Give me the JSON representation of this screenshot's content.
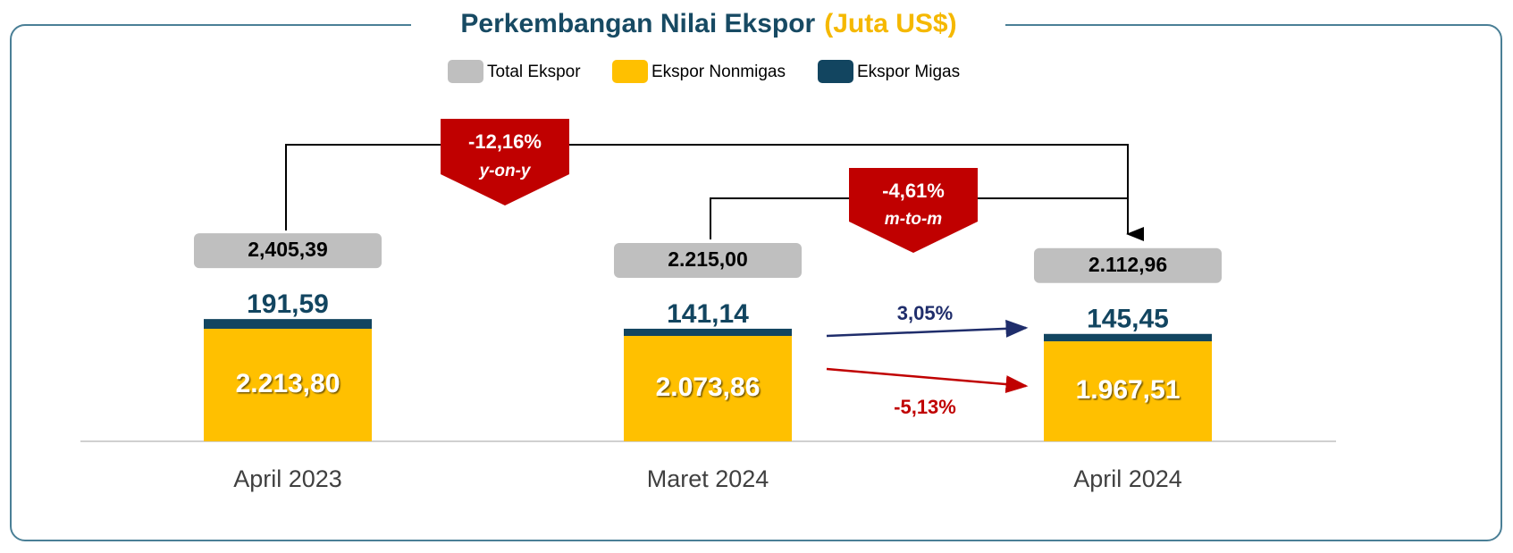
{
  "chart_data": {
    "type": "bar",
    "title": "Perkembangan Nilai Ekspor",
    "title_unit": "(Juta US$)",
    "categories": [
      "April 2023",
      "Maret 2024",
      "April 2024"
    ],
    "series": [
      {
        "name": "Total Ekspor",
        "color": "#bfbfbf",
        "values": [
          2405.39,
          2215.0,
          2112.96
        ],
        "value_labels": [
          "2,405,39",
          "2.215,00",
          "2.112,96"
        ]
      },
      {
        "name": "Ekspor Nonmigas",
        "color": "#ffc000",
        "values": [
          2213.8,
          2073.86,
          1967.51
        ],
        "value_labels": [
          "2.213,80",
          "2.073,86",
          "1.967,51"
        ]
      },
      {
        "name": "Ekspor Migas",
        "color": "#124560",
        "values": [
          191.59,
          141.14,
          145.45
        ],
        "value_labels": [
          "191,59",
          "141,14",
          "145,45"
        ]
      }
    ],
    "yoy_change": "-12,16%",
    "yoy_label": "y-on-y",
    "mtm_change": "-4,61%",
    "mtm_label": "m-to-m",
    "migas_change": "3,05%",
    "nonmigas_change": "-5,13%"
  }
}
